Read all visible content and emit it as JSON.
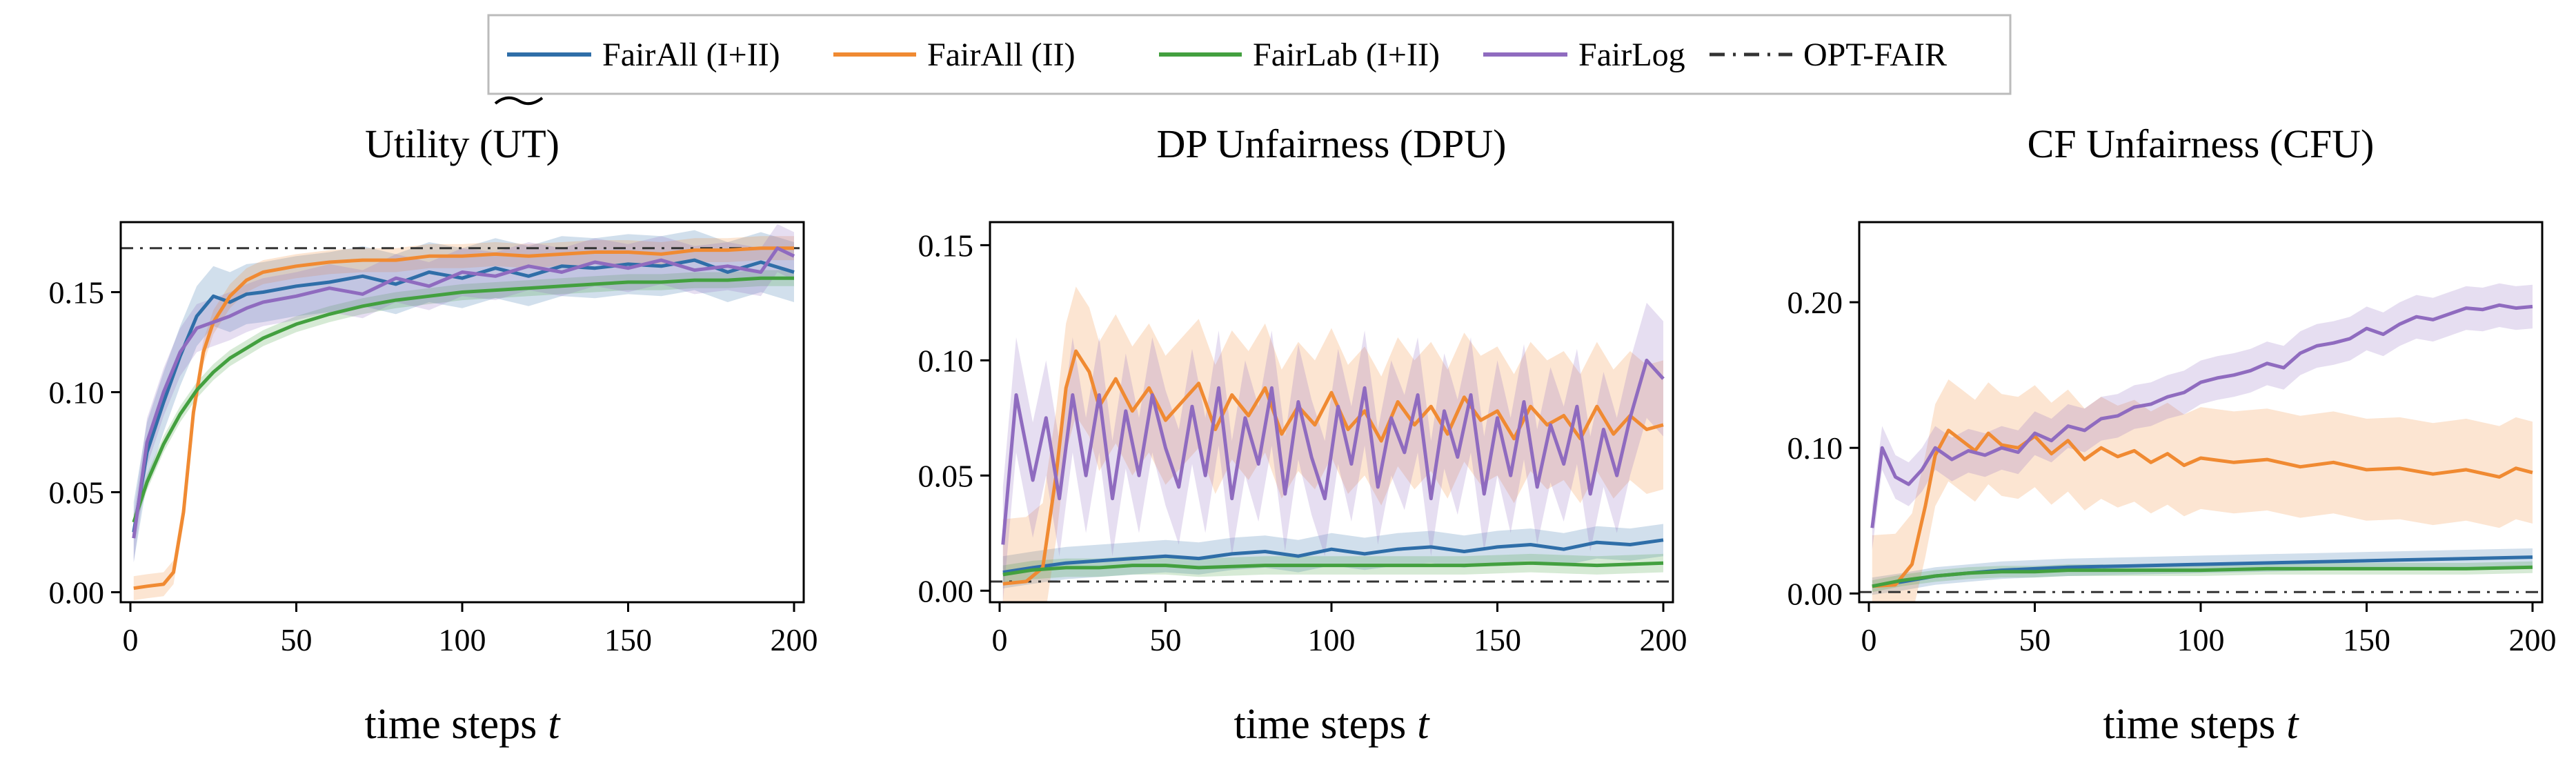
{
  "colors": {
    "FairAll (I+II)": "#2f6ea8",
    "FairAll (II)": "#f08a32",
    "FairLab (I+II)": "#43a03f",
    "FairLog": "#8f6bbf",
    "OPT-FAIR": "#333333"
  },
  "legend": [
    "FairAll (I+II)",
    "FairAll (II)",
    "FairLab (I+II)",
    "FairLog",
    "OPT-FAIR"
  ],
  "chart_data": [
    {
      "type": "line",
      "title": "Utility (UT)",
      "xlabel": "time steps",
      "xlabel_var": "t",
      "xlim": [
        0,
        200
      ],
      "ylim": [
        -0.005,
        0.185
      ],
      "xticks": [
        0,
        50,
        100,
        150,
        200
      ],
      "yticks": [
        0.0,
        0.05,
        0.1,
        0.15
      ],
      "ytick_labels": [
        "0.00",
        "0.05",
        "0.10",
        "0.15"
      ],
      "reference": {
        "name": "OPT-FAIR",
        "y": 0.172
      },
      "series": [
        {
          "name": "FairAll (I+II)",
          "x": [
            1,
            5,
            10,
            15,
            20,
            25,
            30,
            35,
            40,
            50,
            60,
            70,
            80,
            90,
            100,
            110,
            120,
            130,
            140,
            150,
            160,
            170,
            180,
            190,
            200
          ],
          "y": [
            0.03,
            0.07,
            0.095,
            0.118,
            0.138,
            0.148,
            0.145,
            0.149,
            0.15,
            0.153,
            0.155,
            0.158,
            0.154,
            0.16,
            0.157,
            0.162,
            0.158,
            0.163,
            0.162,
            0.164,
            0.163,
            0.166,
            0.16,
            0.165,
            0.16
          ],
          "band": 0.015
        },
        {
          "name": "FairAll (II)",
          "x": [
            1,
            5,
            10,
            13,
            16,
            19,
            22,
            25,
            30,
            35,
            40,
            50,
            60,
            70,
            80,
            90,
            100,
            110,
            120,
            130,
            140,
            150,
            160,
            170,
            180,
            190,
            200
          ],
          "y": [
            0.002,
            0.003,
            0.004,
            0.01,
            0.04,
            0.09,
            0.12,
            0.135,
            0.148,
            0.156,
            0.16,
            0.163,
            0.165,
            0.166,
            0.166,
            0.168,
            0.168,
            0.169,
            0.168,
            0.169,
            0.17,
            0.17,
            0.169,
            0.171,
            0.171,
            0.172,
            0.172
          ],
          "band": 0.006
        },
        {
          "name": "FairLab (I+II)",
          "x": [
            1,
            5,
            10,
            15,
            20,
            25,
            30,
            40,
            50,
            60,
            70,
            80,
            90,
            100,
            110,
            120,
            130,
            140,
            150,
            160,
            170,
            180,
            190,
            200
          ],
          "y": [
            0.035,
            0.055,
            0.074,
            0.089,
            0.101,
            0.11,
            0.117,
            0.127,
            0.134,
            0.139,
            0.143,
            0.146,
            0.148,
            0.15,
            0.151,
            0.152,
            0.153,
            0.154,
            0.155,
            0.155,
            0.156,
            0.156,
            0.157,
            0.157
          ],
          "band": 0.004
        },
        {
          "name": "FairLog",
          "x": [
            1,
            5,
            10,
            15,
            20,
            25,
            30,
            35,
            40,
            50,
            60,
            70,
            80,
            90,
            100,
            110,
            120,
            130,
            140,
            150,
            160,
            170,
            180,
            190,
            195,
            200
          ],
          "y": [
            0.027,
            0.075,
            0.1,
            0.12,
            0.132,
            0.135,
            0.138,
            0.142,
            0.145,
            0.148,
            0.152,
            0.149,
            0.157,
            0.153,
            0.16,
            0.158,
            0.163,
            0.16,
            0.165,
            0.162,
            0.166,
            0.161,
            0.163,
            0.16,
            0.172,
            0.168
          ],
          "band": 0.012
        }
      ]
    },
    {
      "type": "line",
      "title": "DP Unfairness (DPU)",
      "xlabel": "time steps",
      "xlabel_var": "t",
      "xlim": [
        0,
        200
      ],
      "ylim": [
        -0.005,
        0.16
      ],
      "xticks": [
        0,
        50,
        100,
        150,
        200
      ],
      "yticks": [
        0.0,
        0.05,
        0.1,
        0.15
      ],
      "ytick_labels": [
        "0.00",
        "0.05",
        "0.10",
        "0.15"
      ],
      "reference": {
        "name": "OPT-FAIR",
        "y": 0.004
      },
      "series": [
        {
          "name": "FairAll (I+II)",
          "x": [
            1,
            10,
            20,
            30,
            40,
            50,
            60,
            70,
            80,
            90,
            100,
            110,
            120,
            130,
            140,
            150,
            160,
            170,
            180,
            190,
            200
          ],
          "y": [
            0.008,
            0.01,
            0.012,
            0.013,
            0.014,
            0.015,
            0.014,
            0.016,
            0.017,
            0.015,
            0.018,
            0.016,
            0.018,
            0.019,
            0.017,
            0.019,
            0.02,
            0.018,
            0.021,
            0.02,
            0.022
          ],
          "band": 0.007
        },
        {
          "name": "FairAll (II)",
          "x": [
            1,
            8,
            13,
            17,
            20,
            23,
            27,
            30,
            35,
            40,
            45,
            50,
            55,
            60,
            65,
            70,
            75,
            80,
            85,
            90,
            95,
            100,
            105,
            110,
            115,
            120,
            125,
            130,
            135,
            140,
            145,
            150,
            155,
            160,
            165,
            170,
            175,
            180,
            185,
            190,
            195,
            200
          ],
          "y": [
            0.003,
            0.004,
            0.01,
            0.05,
            0.088,
            0.104,
            0.095,
            0.08,
            0.092,
            0.078,
            0.088,
            0.074,
            0.082,
            0.09,
            0.07,
            0.085,
            0.076,
            0.088,
            0.068,
            0.08,
            0.072,
            0.086,
            0.07,
            0.078,
            0.065,
            0.082,
            0.072,
            0.08,
            0.068,
            0.084,
            0.074,
            0.078,
            0.066,
            0.08,
            0.072,
            0.076,
            0.066,
            0.08,
            0.068,
            0.076,
            0.07,
            0.072
          ],
          "band": 0.028
        },
        {
          "name": "FairLab (I+II)",
          "x": [
            1,
            10,
            20,
            30,
            40,
            50,
            60,
            80,
            100,
            120,
            140,
            160,
            180,
            200
          ],
          "y": [
            0.007,
            0.009,
            0.01,
            0.01,
            0.011,
            0.011,
            0.01,
            0.011,
            0.011,
            0.011,
            0.011,
            0.012,
            0.011,
            0.012
          ],
          "band": 0.004
        },
        {
          "name": "FairLog",
          "x": [
            1,
            5,
            10,
            14,
            18,
            22,
            26,
            30,
            34,
            38,
            42,
            46,
            50,
            54,
            58,
            62,
            66,
            70,
            74,
            78,
            82,
            86,
            90,
            94,
            98,
            102,
            106,
            110,
            114,
            118,
            122,
            126,
            130,
            134,
            138,
            142,
            146,
            150,
            154,
            158,
            162,
            166,
            170,
            174,
            178,
            182,
            186,
            190,
            195,
            200
          ],
          "y": [
            0.02,
            0.085,
            0.048,
            0.075,
            0.04,
            0.085,
            0.05,
            0.085,
            0.04,
            0.078,
            0.05,
            0.085,
            0.062,
            0.045,
            0.08,
            0.05,
            0.088,
            0.04,
            0.075,
            0.055,
            0.088,
            0.042,
            0.082,
            0.058,
            0.04,
            0.08,
            0.055,
            0.088,
            0.045,
            0.075,
            0.06,
            0.085,
            0.04,
            0.078,
            0.058,
            0.085,
            0.042,
            0.075,
            0.05,
            0.082,
            0.045,
            0.072,
            0.055,
            0.08,
            0.042,
            0.07,
            0.05,
            0.075,
            0.1,
            0.092
          ],
          "band": 0.025
        }
      ]
    },
    {
      "type": "line",
      "title": "CF Unfairness (CFU)",
      "xlabel": "time steps",
      "xlabel_var": "t",
      "xlim": [
        0,
        200
      ],
      "ylim": [
        -0.006,
        0.255
      ],
      "xticks": [
        0,
        50,
        100,
        150,
        200
      ],
      "yticks": [
        0.0,
        0.1,
        0.2
      ],
      "ytick_labels": [
        "0.00",
        "0.10",
        "0.20"
      ],
      "reference": {
        "name": "OPT-FAIR",
        "y": 0.001
      },
      "series": [
        {
          "name": "FairAll (I+II)",
          "x": [
            1,
            10,
            20,
            30,
            40,
            50,
            60,
            80,
            100,
            120,
            140,
            160,
            180,
            200
          ],
          "y": [
            0.005,
            0.008,
            0.012,
            0.014,
            0.016,
            0.017,
            0.018,
            0.019,
            0.02,
            0.021,
            0.022,
            0.023,
            0.024,
            0.025
          ],
          "band": 0.006
        },
        {
          "name": "FairAll (II)",
          "x": [
            1,
            8,
            13,
            17,
            20,
            24,
            28,
            32,
            36,
            40,
            45,
            50,
            55,
            60,
            65,
            70,
            75,
            80,
            85,
            90,
            95,
            100,
            110,
            120,
            130,
            140,
            150,
            160,
            170,
            180,
            190,
            195,
            200
          ],
          "y": [
            0.005,
            0.006,
            0.02,
            0.06,
            0.095,
            0.112,
            0.105,
            0.098,
            0.11,
            0.102,
            0.1,
            0.108,
            0.096,
            0.105,
            0.092,
            0.1,
            0.094,
            0.098,
            0.09,
            0.096,
            0.088,
            0.093,
            0.09,
            0.092,
            0.087,
            0.09,
            0.085,
            0.086,
            0.082,
            0.085,
            0.08,
            0.086,
            0.083
          ],
          "band": 0.035
        },
        {
          "name": "FairLab (I+II)",
          "x": [
            1,
            10,
            20,
            30,
            40,
            50,
            60,
            80,
            100,
            120,
            140,
            160,
            180,
            200
          ],
          "y": [
            0.005,
            0.009,
            0.012,
            0.014,
            0.015,
            0.015,
            0.016,
            0.016,
            0.016,
            0.017,
            0.017,
            0.017,
            0.017,
            0.018
          ],
          "band": 0.004
        },
        {
          "name": "FairLog",
          "x": [
            1,
            4,
            8,
            12,
            16,
            20,
            25,
            30,
            35,
            40,
            45,
            50,
            55,
            60,
            65,
            70,
            75,
            80,
            85,
            90,
            95,
            100,
            105,
            110,
            115,
            120,
            125,
            130,
            135,
            140,
            145,
            150,
            155,
            160,
            165,
            170,
            175,
            180,
            185,
            190,
            195,
            200
          ],
          "y": [
            0.045,
            0.1,
            0.08,
            0.075,
            0.085,
            0.1,
            0.092,
            0.098,
            0.095,
            0.1,
            0.097,
            0.11,
            0.105,
            0.115,
            0.112,
            0.12,
            0.122,
            0.128,
            0.13,
            0.135,
            0.138,
            0.145,
            0.148,
            0.15,
            0.153,
            0.158,
            0.155,
            0.165,
            0.17,
            0.172,
            0.175,
            0.182,
            0.178,
            0.185,
            0.19,
            0.188,
            0.192,
            0.196,
            0.195,
            0.198,
            0.196,
            0.197
          ],
          "band": 0.015
        }
      ]
    }
  ]
}
